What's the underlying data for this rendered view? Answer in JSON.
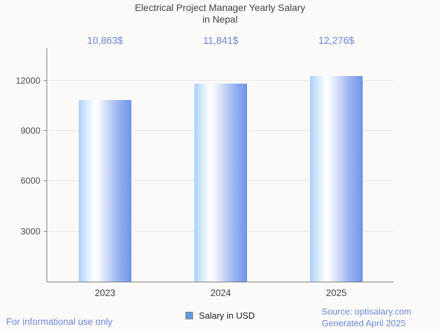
{
  "title": {
    "line1": "Electrical Project Manager Yearly Salary",
    "line2": "in Nepal"
  },
  "chart_data": {
    "type": "bar",
    "title": "Electrical Project Manager Yearly Salary in Nepal",
    "categories": [
      "2023",
      "2024",
      "2025"
    ],
    "values": [
      10863,
      11841,
      12276
    ],
    "value_labels": [
      "10,863$",
      "11,841$",
      "12,276$"
    ],
    "series_name": "Salary in USD",
    "xlabel": "",
    "ylabel": "",
    "ylim": [
      0,
      14000
    ],
    "yticks": [
      3000,
      6000,
      9000,
      12000
    ],
    "grid": true,
    "legend_position": "bottom"
  },
  "legend": {
    "label": "Salary in USD"
  },
  "footer": {
    "left": "For informational use only",
    "source_line1": "Source: optisalary.com",
    "source_line2": "Generated April 2025"
  },
  "colors": {
    "accent_blue": "#6b87dc",
    "bar_gradient_left": "#a7d2f9",
    "bar_gradient_mid": "#ffffff",
    "bar_gradient_right": "#6e94ea",
    "legend_swatch": "#5d9ae4",
    "gridline": "#e9e6e2",
    "background": "#fbfaf8"
  }
}
